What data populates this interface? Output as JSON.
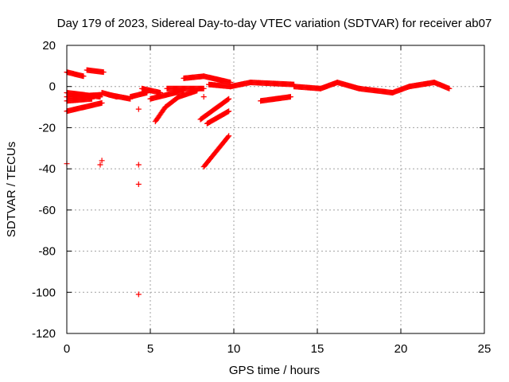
{
  "chart_data": {
    "type": "scatter",
    "title": "Day 179 of 2023, Sidereal Day-to-day VTEC variation (SDTVAR) for receiver ab07",
    "xlabel": "GPS time / hours",
    "ylabel": "SDTVAR / TECUs",
    "xlim": [
      0,
      25
    ],
    "ylim": [
      -120,
      20
    ],
    "xticks": [
      "0",
      "5",
      "10",
      "15",
      "20",
      "25"
    ],
    "yticks": [
      "20",
      "0",
      "-20",
      "-40",
      "-60",
      "-80",
      "-100",
      "-120"
    ],
    "grid": true,
    "marker": "+",
    "color": "#ff0000",
    "segments": [
      {
        "x0": 0.0,
        "y0": 7,
        "x1": 1.0,
        "y1": 5
      },
      {
        "x0": 1.2,
        "y0": 8,
        "x1": 2.2,
        "y1": 7
      },
      {
        "x0": 0.0,
        "y0": -3,
        "x1": 2.0,
        "y1": -5
      },
      {
        "x0": 0.0,
        "y0": -5,
        "x1": 2.1,
        "y1": -4
      },
      {
        "x0": 0.0,
        "y0": -7,
        "x1": 1.5,
        "y1": -6
      },
      {
        "x0": 0.0,
        "y0": -12,
        "x1": 2.1,
        "y1": -8
      },
      {
        "x0": 2.1,
        "y0": -3,
        "x1": 3.0,
        "y1": -5
      },
      {
        "x0": 2.5,
        "y0": -4,
        "x1": 3.8,
        "y1": -6
      },
      {
        "x0": 3.8,
        "y0": -5,
        "x1": 4.8,
        "y1": -3
      },
      {
        "x0": 4.5,
        "y0": -1,
        "x1": 5.6,
        "y1": -3
      },
      {
        "x0": 5.0,
        "y0": -6,
        "x1": 7.0,
        "y1": -2
      },
      {
        "x0": 5.3,
        "y0": -17,
        "x1": 5.9,
        "y1": -10
      },
      {
        "x0": 5.9,
        "y0": -10,
        "x1": 6.7,
        "y1": -5
      },
      {
        "x0": 6.7,
        "y0": -5,
        "x1": 7.8,
        "y1": -2
      },
      {
        "x0": 6.0,
        "y0": -1,
        "x1": 8.2,
        "y1": -1
      },
      {
        "x0": 7.0,
        "y0": 4,
        "x1": 8.2,
        "y1": 5
      },
      {
        "x0": 8.2,
        "y0": 5,
        "x1": 9.8,
        "y1": 2
      },
      {
        "x0": 8.5,
        "y0": 1,
        "x1": 9.8,
        "y1": 0
      },
      {
        "x0": 8.0,
        "y0": -16,
        "x1": 9.7,
        "y1": -6
      },
      {
        "x0": 8.4,
        "y0": -18,
        "x1": 9.7,
        "y1": -12
      },
      {
        "x0": 8.2,
        "y0": -39,
        "x1": 9.7,
        "y1": -24
      },
      {
        "x0": 9.8,
        "y0": 0,
        "x1": 11.0,
        "y1": 2
      },
      {
        "x0": 11.0,
        "y0": 2,
        "x1": 13.6,
        "y1": 1
      },
      {
        "x0": 11.6,
        "y0": -7,
        "x1": 13.4,
        "y1": -5
      },
      {
        "x0": 13.6,
        "y0": 0,
        "x1": 15.2,
        "y1": -1
      },
      {
        "x0": 15.2,
        "y0": -1,
        "x1": 16.2,
        "y1": 2
      },
      {
        "x0": 16.2,
        "y0": 2,
        "x1": 17.5,
        "y1": -1
      },
      {
        "x0": 17.5,
        "y0": -1,
        "x1": 19.5,
        "y1": -3
      },
      {
        "x0": 19.5,
        "y0": -3,
        "x1": 20.5,
        "y1": 0
      },
      {
        "x0": 20.5,
        "y0": 0,
        "x1": 22.0,
        "y1": 2
      },
      {
        "x0": 22.0,
        "y0": 2,
        "x1": 22.9,
        "y1": -1
      }
    ],
    "points": [
      {
        "x": 0.0,
        "y": -37.5
      },
      {
        "x": 2.0,
        "y": -38
      },
      {
        "x": 2.1,
        "y": -36
      },
      {
        "x": 4.3,
        "y": -11
      },
      {
        "x": 4.3,
        "y": -38
      },
      {
        "x": 4.3,
        "y": -47.5
      },
      {
        "x": 4.3,
        "y": -101
      },
      {
        "x": 8.2,
        "y": -5
      }
    ]
  }
}
